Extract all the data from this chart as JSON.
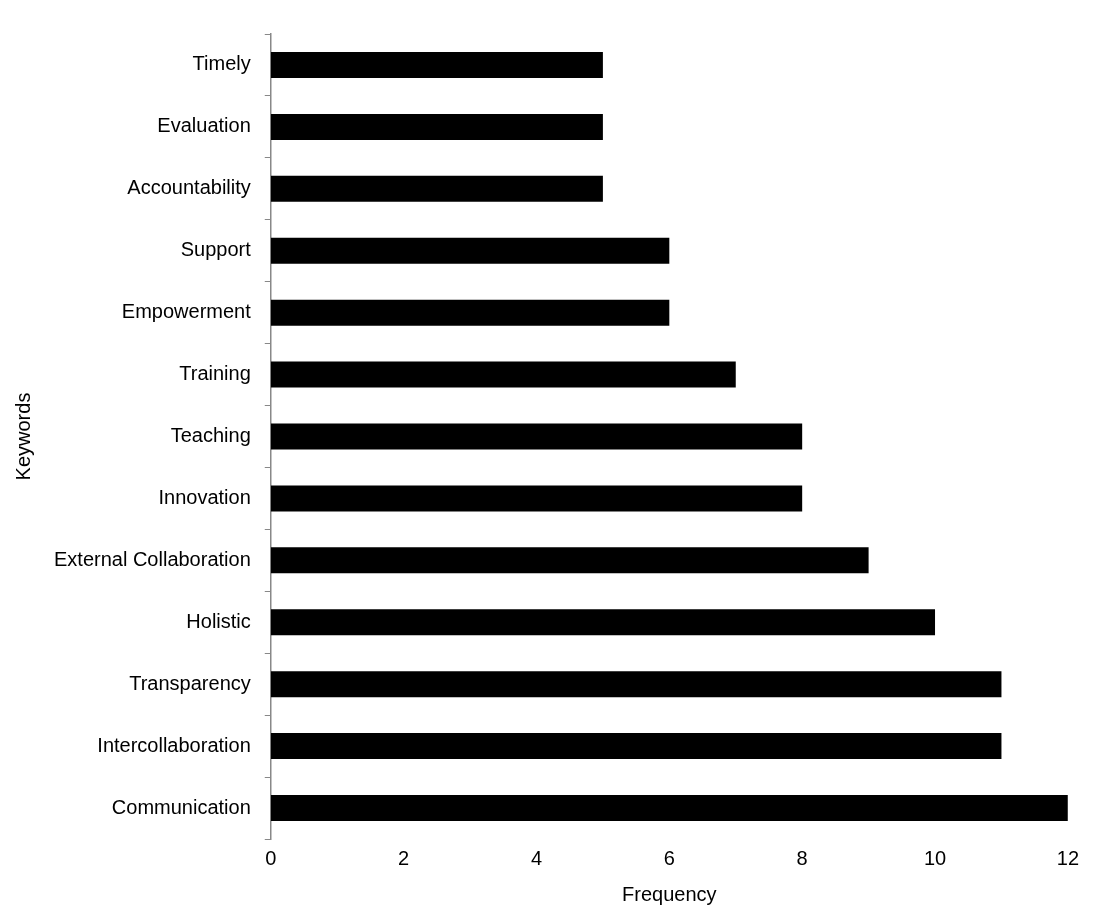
{
  "chart_data": {
    "type": "bar",
    "orientation": "horizontal",
    "categories": [
      "Timely",
      "Evaluation",
      "Accountability",
      "Support",
      "Empowerment",
      "Training",
      "Teaching",
      "Innovation",
      "External Collaboration",
      "Holistic",
      "Transparency",
      "Intercollaboration",
      "Communication"
    ],
    "values": [
      5,
      5,
      5,
      6,
      6,
      7,
      8,
      8,
      9,
      10,
      11,
      11,
      12
    ],
    "color": "#000000",
    "xlim": [
      0,
      12
    ],
    "xticks": [
      0,
      2,
      4,
      6,
      8,
      10,
      12
    ],
    "xlabel": "Frequency",
    "ylabel": "Keywords",
    "grid": false,
    "legend": false
  }
}
